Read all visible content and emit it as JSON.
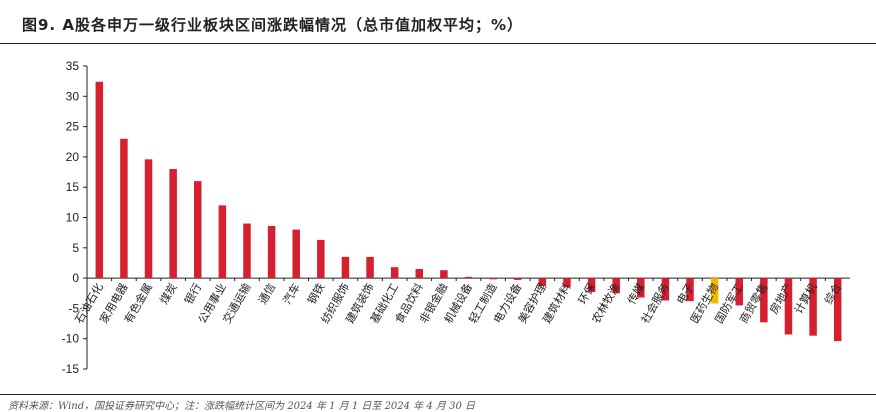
{
  "header": {
    "title": "图9. A股各申万一级行业板块区间涨跌幅情况（总市值加权平均；%）"
  },
  "footer": {
    "source": "资料来源：Wind，国投证券研究中心；注：涨跌幅统计区间为 2024 年 1 月 1 日至 2024 年 4 月 30 日"
  },
  "colors": {
    "bar": "#d7202f",
    "highlight": "#f5b800",
    "axis": "#222222"
  },
  "chart_data": {
    "type": "bar",
    "title": "",
    "xlabel": "",
    "ylabel": "",
    "ylim": [
      -15,
      35
    ],
    "yticks": [
      -15,
      -10,
      -5,
      0,
      5,
      10,
      15,
      20,
      25,
      30,
      35
    ],
    "grid": false,
    "highlight_category": "医药生物",
    "categories": [
      "石油石化",
      "家用电器",
      "有色金属",
      "煤炭",
      "银行",
      "公用事业",
      "交通运输",
      "通信",
      "汽车",
      "钢铁",
      "纺织服饰",
      "建筑装饰",
      "基础化工",
      "食品饮料",
      "非银金融",
      "机械设备",
      "轻工制造",
      "电力设备",
      "美容护理",
      "建筑材料",
      "环保",
      "农林牧渔",
      "传媒",
      "社会服务",
      "电子",
      "医药生物",
      "国防军工",
      "商贸零售",
      "房地产",
      "计算机",
      "综合"
    ],
    "values": [
      32.4,
      23.0,
      19.6,
      18.0,
      16.0,
      12.0,
      9.0,
      8.6,
      8.0,
      6.3,
      3.5,
      3.5,
      1.8,
      1.5,
      1.3,
      0.2,
      -0.2,
      -0.3,
      -1.3,
      -1.5,
      -2.3,
      -2.5,
      -3.2,
      -3.7,
      -3.8,
      -4.2,
      -4.5,
      -7.3,
      -9.3,
      -9.5,
      -10.4
    ]
  }
}
